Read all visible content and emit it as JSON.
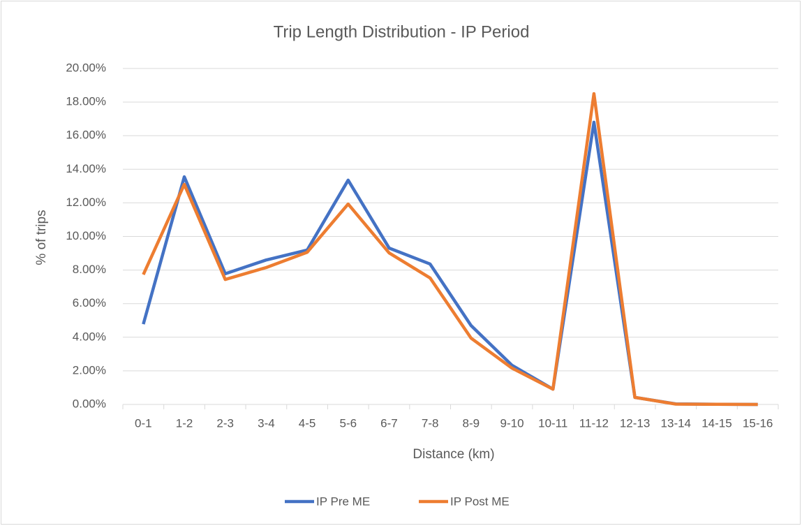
{
  "chart_data": {
    "type": "line",
    "title": "Trip Length Distribution - IP Period",
    "x_label": "Distance (km)",
    "y_label": "% of trips",
    "categories": [
      "0-1",
      "1-2",
      "2-3",
      "3-4",
      "4-5",
      "5-6",
      "6-7",
      "7-8",
      "8-9",
      "9-10",
      "10-11",
      "11-12",
      "12-13",
      "13-14",
      "14-15",
      "15-16"
    ],
    "series": [
      {
        "name": "IP Pre ME",
        "color": "#4472c4",
        "values": [
          4.78,
          13.55,
          7.78,
          8.6,
          9.19,
          13.35,
          9.31,
          8.36,
          4.7,
          2.33,
          0.91,
          16.8,
          0.42,
          0.03,
          0.01,
          0.0
        ]
      },
      {
        "name": "IP Post ME",
        "color": "#ed7d31",
        "values": [
          7.73,
          13.1,
          7.44,
          8.15,
          9.06,
          11.93,
          9.02,
          7.53,
          3.95,
          2.16,
          0.91,
          18.5,
          0.42,
          0.02,
          0.01,
          0.0
        ]
      }
    ],
    "ylim": [
      0,
      20
    ],
    "yticks": [
      {
        "value": 0,
        "label": "0.00%"
      },
      {
        "value": 2,
        "label": "2.00%"
      },
      {
        "value": 4,
        "label": "4.00%"
      },
      {
        "value": 6,
        "label": "6.00%"
      },
      {
        "value": 8,
        "label": "8.00%"
      },
      {
        "value": 10,
        "label": "10.00%"
      },
      {
        "value": 12,
        "label": "12.00%"
      },
      {
        "value": 14,
        "label": "14.00%"
      },
      {
        "value": 16,
        "label": "16.00%"
      },
      {
        "value": 18,
        "label": "18.00%"
      },
      {
        "value": 20,
        "label": "20.00%"
      }
    ],
    "grid": true,
    "legend": "bottom"
  }
}
